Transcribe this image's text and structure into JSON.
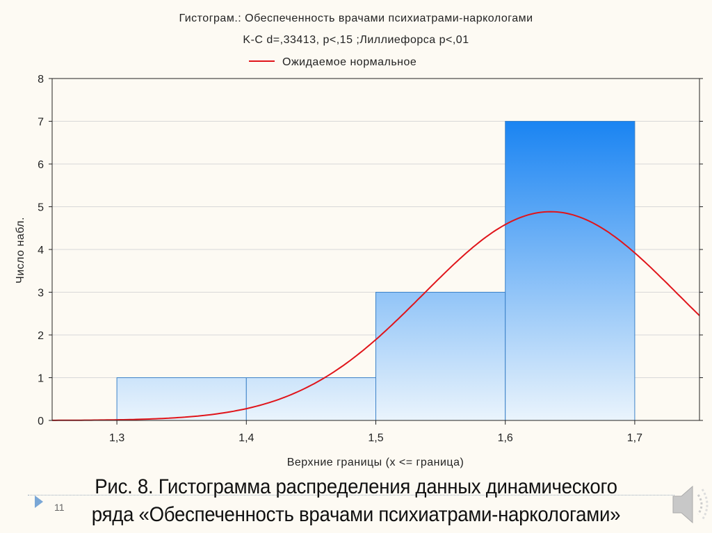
{
  "chart_data": {
    "type": "bar",
    "title": "Гистограм.: Обеспеченность врачами психиатрами-наркологами",
    "subtitle": "K-C d=,33413, p<,15 ;Лиллиефорса p<,01",
    "legend": [
      {
        "label": "Ожидаемое нормальное",
        "color": "#e0141a",
        "placement": "top"
      }
    ],
    "xlabel": "Верхние границы (x <= граница)",
    "ylabel": "Число набл.",
    "xlim": [
      1.25,
      1.75
    ],
    "ylim": [
      0,
      8
    ],
    "x_ticks": [
      "1,3",
      "1,4",
      "1,5",
      "1,6",
      "1,7"
    ],
    "x_tick_values": [
      1.3,
      1.4,
      1.5,
      1.6,
      1.7
    ],
    "y_ticks": [
      "0",
      "1",
      "2",
      "3",
      "4",
      "5",
      "6",
      "7",
      "8"
    ],
    "bins": [
      {
        "from": 1.3,
        "to": 1.4,
        "count": 1
      },
      {
        "from": 1.4,
        "to": 1.5,
        "count": 1
      },
      {
        "from": 1.5,
        "to": 1.6,
        "count": 3
      },
      {
        "from": 1.6,
        "to": 1.7,
        "count": 7
      }
    ],
    "normal_curve": {
      "mean": 1.635,
      "sd": 0.098,
      "n": 12,
      "bin_width": 0.1
    },
    "grid": true,
    "colors": {
      "bar_top": "#1a84f2",
      "bar_bottom": "#eaf4fc",
      "bar_edge": "#3c82c8",
      "curve": "#e0141a"
    }
  },
  "slide": {
    "caption_line1": "Рис. 8. Гистограмма распределения данных динамического",
    "caption_line2": "ряда «Обеспеченность врачами психиатрами-наркологами»",
    "page_number": "11"
  }
}
